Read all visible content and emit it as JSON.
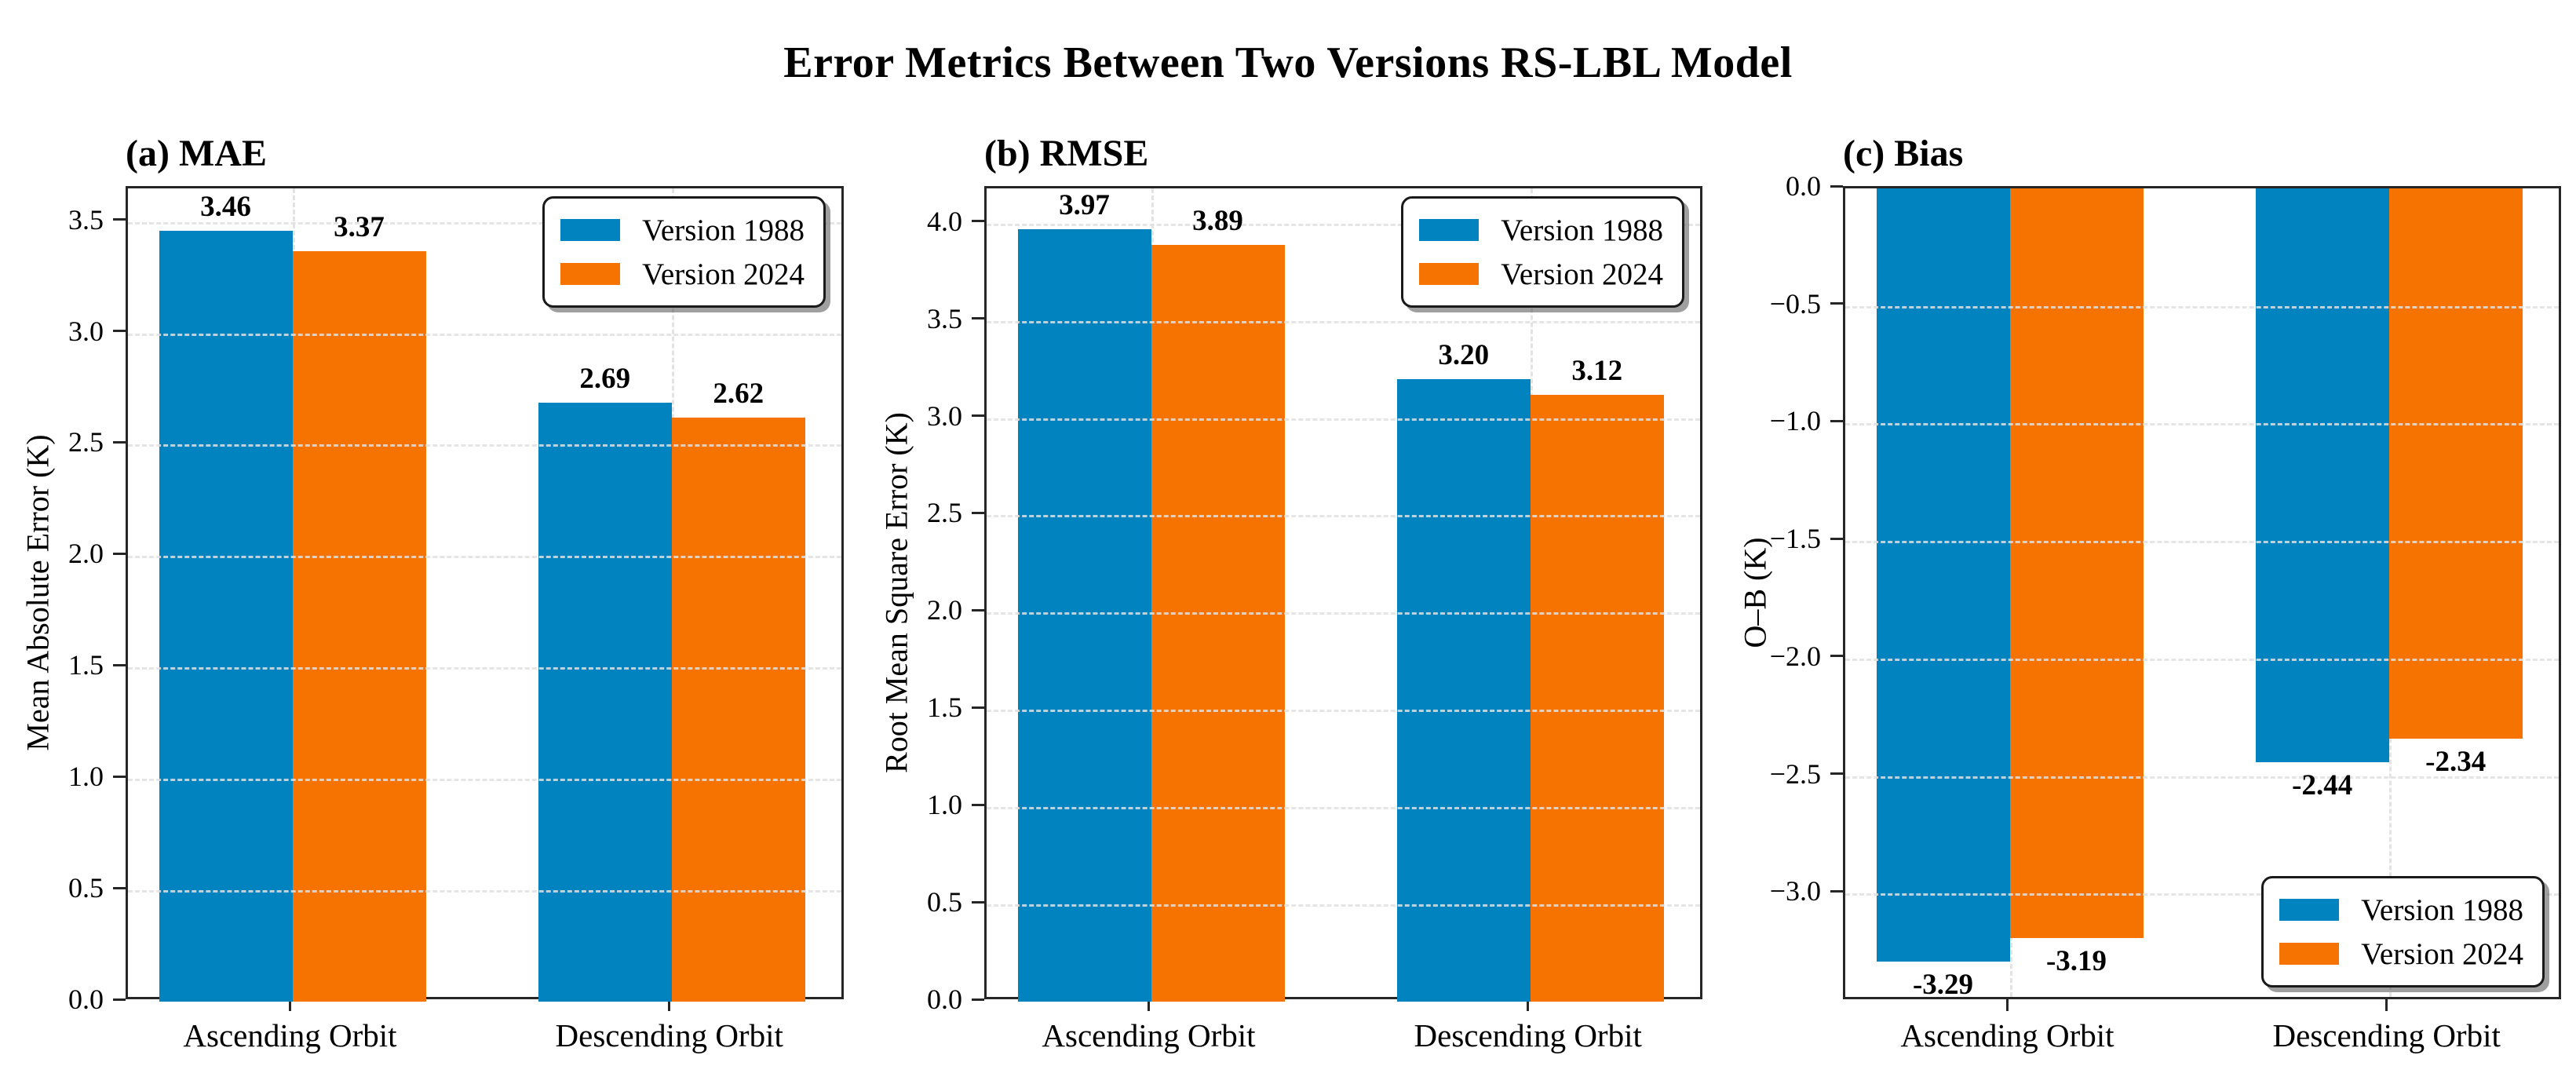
{
  "figure_title": "Error Metrics Between Two Versions RS-LBL Model",
  "colors": {
    "version_1988": "#0083bf",
    "version_2024": "#f67301",
    "grid": "#e0e0e0",
    "spine": "#262626",
    "text": "#000000"
  },
  "legend_labels": [
    "Version 1988",
    "Version 2024"
  ],
  "chart_data": [
    {
      "type": "bar",
      "panel_label": "(a) MAE",
      "ylabel": "Mean Absolute Error (K)",
      "xlabel": "",
      "categories": [
        "Ascending Orbit",
        "Descending Orbit"
      ],
      "series": [
        {
          "name": "Version 1988",
          "color": "#0083bf",
          "values": [
            3.46,
            2.69
          ],
          "labels": [
            "3.46",
            "2.69"
          ]
        },
        {
          "name": "Version 2024",
          "color": "#f67301",
          "values": [
            3.37,
            2.62
          ],
          "labels": [
            "3.37",
            "2.62"
          ]
        }
      ],
      "ylim": [
        0,
        3.65
      ],
      "yticks": [
        0.0,
        0.5,
        1.0,
        1.5,
        2.0,
        2.5,
        3.0,
        3.5
      ],
      "ytick_labels": [
        "0.0",
        "0.5",
        "1.0",
        "1.5",
        "2.0",
        "2.5",
        "3.0",
        "3.5"
      ],
      "grid": true,
      "legend_position": "top-right"
    },
    {
      "type": "bar",
      "panel_label": "(b) RMSE",
      "ylabel": "Root Mean Square Error (K)",
      "xlabel": "",
      "categories": [
        "Ascending Orbit",
        "Descending Orbit"
      ],
      "series": [
        {
          "name": "Version 1988",
          "color": "#0083bf",
          "values": [
            3.97,
            3.2
          ],
          "labels": [
            "3.97",
            "3.20"
          ]
        },
        {
          "name": "Version 2024",
          "color": "#f67301",
          "values": [
            3.89,
            3.12
          ],
          "labels": [
            "3.89",
            "3.12"
          ]
        }
      ],
      "ylim": [
        0,
        4.18
      ],
      "yticks": [
        0.0,
        0.5,
        1.0,
        1.5,
        2.0,
        2.5,
        3.0,
        3.5,
        4.0
      ],
      "ytick_labels": [
        "0.0",
        "0.5",
        "1.0",
        "1.5",
        "2.0",
        "2.5",
        "3.0",
        "3.5",
        "4.0"
      ],
      "grid": true,
      "legend_position": "top-right"
    },
    {
      "type": "bar",
      "panel_label": "(c) Bias",
      "ylabel": "O–B (K)",
      "xlabel": "",
      "categories": [
        "Ascending Orbit",
        "Descending Orbit"
      ],
      "series": [
        {
          "name": "Version 1988",
          "color": "#0083bf",
          "values": [
            -3.29,
            -2.44
          ],
          "labels": [
            "-3.29",
            "-2.44"
          ]
        },
        {
          "name": "Version 2024",
          "color": "#f67301",
          "values": [
            -3.19,
            -2.34
          ],
          "labels": [
            "-3.19",
            "-2.34"
          ]
        }
      ],
      "ylim": [
        -3.46,
        0
      ],
      "yticks": [
        0.0,
        -0.5,
        -1.0,
        -1.5,
        -2.0,
        -2.5,
        -3.0
      ],
      "ytick_labels": [
        "0.0",
        "−0.5",
        "−1.0",
        "−1.5",
        "−2.0",
        "−2.5",
        "−3.0"
      ],
      "grid": true,
      "legend_position": "bottom-right"
    }
  ]
}
